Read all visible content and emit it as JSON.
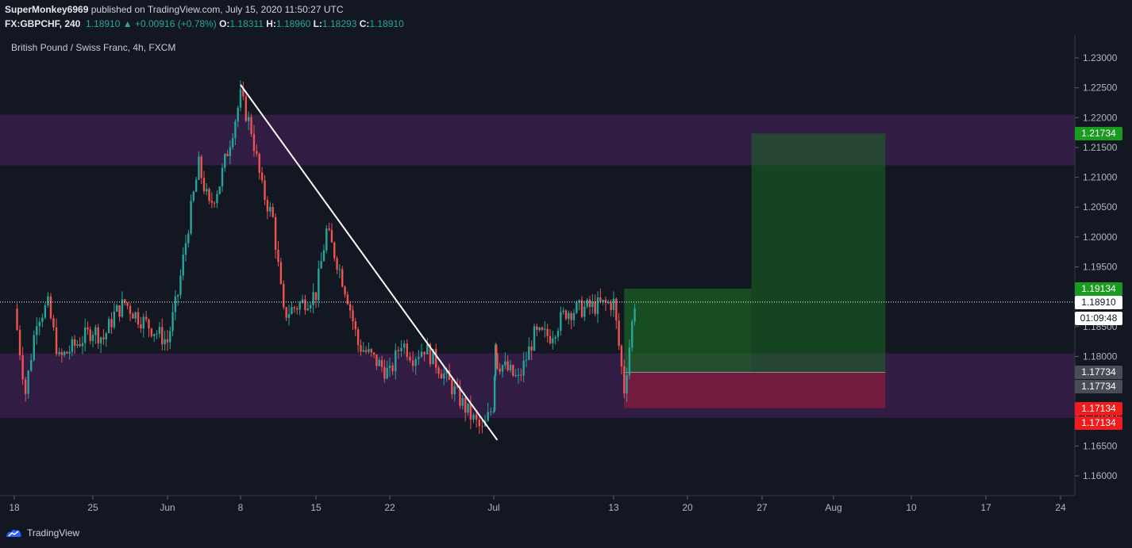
{
  "header": {
    "publisher": "SuperMonkey6969",
    "published_text": "published on TradingView.com, July 15, 2020 11:50:27 UTC",
    "symbol": "FX:GBPCHF, 240",
    "last": "1.18910",
    "change": "▲ +0.00916 (+0.78%)",
    "o_label": "O:",
    "o_value": "1.18311",
    "h_label": "H:",
    "h_value": "1.18960",
    "l_label": "L:",
    "l_value": "1.18293",
    "c_label": "C:",
    "c_value": "1.18910"
  },
  "footer": {
    "brand": "TradingView"
  },
  "colors": {
    "up": "#26a69a",
    "down": "#ef5350",
    "zone": "#4a2060",
    "background": "#131722"
  },
  "chart_data": {
    "type": "candlestick",
    "title": "British Pound / Swiss Franc, 4h, FXCM",
    "y_ticks": [
      "1.23000",
      "1.22500",
      "1.22000",
      "1.21500",
      "1.21000",
      "1.20500",
      "1.20000",
      "1.19500",
      "1.19000",
      "1.18500",
      "1.18000",
      "1.17500",
      "1.17000",
      "1.16500",
      "1.16000"
    ],
    "ylim": [
      1.1565,
      1.2345
    ],
    "x_ticks": [
      "18",
      "25",
      "Jun",
      "8",
      "15",
      "22",
      "Jul",
      "13",
      "20",
      "27",
      "Aug",
      "10",
      "17",
      "24"
    ],
    "last_price": 1.1891,
    "countdown": "01:09:48",
    "price_labels": [
      {
        "text": "1.21734",
        "value": 1.21734,
        "color": "#1b9a20"
      },
      {
        "text": "1.19134",
        "value": 1.19134,
        "color": "#1b9a20"
      },
      {
        "text": "1.18910",
        "value": 1.1891,
        "color": "#ffffff"
      },
      {
        "text": "1.17734",
        "value": 1.17734,
        "color": "#4a4d55"
      },
      {
        "text": "1.17734",
        "value": 1.17734,
        "color": "#4a4d55"
      },
      {
        "text": "1.17134",
        "value": 1.17134,
        "color": "#ee1c1c"
      },
      {
        "text": "1.17134",
        "value": 1.17134,
        "color": "#ee1c1c"
      }
    ],
    "zones": [
      {
        "from": 1.212,
        "to": 1.2205
      },
      {
        "from": 1.1697,
        "to": 1.1805
      }
    ],
    "trendline": {
      "from": {
        "date": "Jun 8",
        "price": 1.2255
      },
      "to": {
        "date": "Jul 3",
        "price": 1.166
      }
    },
    "long_position": {
      "start": "Jul 14",
      "entry": 1.17734,
      "stop": 1.17134,
      "target_1": 1.19134,
      "target_2": 1.21734
    },
    "path": [
      {
        "date": "May 18",
        "close": 1.188
      },
      {
        "date": "May 19",
        "close": 1.174
      },
      {
        "date": "May 20",
        "close": 1.1865
      },
      {
        "date": "May 21",
        "close": 1.1885
      },
      {
        "date": "May 22",
        "close": 1.1795
      },
      {
        "date": "May 25",
        "close": 1.1845
      },
      {
        "date": "May 26",
        "close": 1.183
      },
      {
        "date": "May 27",
        "close": 1.187
      },
      {
        "date": "May 28",
        "close": 1.189
      },
      {
        "date": "May 29",
        "close": 1.187
      },
      {
        "date": "Jun 1",
        "close": 1.1825
      },
      {
        "date": "Jun 2",
        "close": 1.1905
      },
      {
        "date": "Jun 3",
        "close": 1.202
      },
      {
        "date": "Jun 4",
        "close": 1.212
      },
      {
        "date": "Jun 5",
        "close": 1.205
      },
      {
        "date": "Jun 6",
        "close": 1.209
      },
      {
        "date": "Jun 8",
        "close": 1.2235
      },
      {
        "date": "Jun 9",
        "close": 1.218
      },
      {
        "date": "Jun 10",
        "close": 1.208
      },
      {
        "date": "Jun 11",
        "close": 1.203
      },
      {
        "date": "Jun 12",
        "close": 1.187
      },
      {
        "date": "Jun 15",
        "close": 1.1905
      },
      {
        "date": "Jun 16",
        "close": 1.201
      },
      {
        "date": "Jun 17",
        "close": 1.196
      },
      {
        "date": "Jun 18",
        "close": 1.19
      },
      {
        "date": "Jun 19",
        "close": 1.182
      },
      {
        "date": "Jun 22",
        "close": 1.177
      },
      {
        "date": "Jun 23",
        "close": 1.1825
      },
      {
        "date": "Jun 24",
        "close": 1.18
      },
      {
        "date": "Jun 25",
        "close": 1.1815
      },
      {
        "date": "Jun 26",
        "close": 1.179
      },
      {
        "date": "Jun 29",
        "close": 1.17
      },
      {
        "date": "Jun 30",
        "close": 1.1675
      },
      {
        "date": "Jul 1",
        "close": 1.172
      },
      {
        "date": "Jul 2",
        "close": 1.183
      },
      {
        "date": "Jul 3",
        "close": 1.179
      },
      {
        "date": "Jul 6",
        "close": 1.1785
      },
      {
        "date": "Jul 7",
        "close": 1.176
      },
      {
        "date": "Jul 8",
        "close": 1.1835
      },
      {
        "date": "Jul 9",
        "close": 1.1835
      },
      {
        "date": "Jul 10",
        "close": 1.1875
      },
      {
        "date": "Jul 13",
        "close": 1.189
      },
      {
        "date": "Jul 14",
        "close": 1.1745
      },
      {
        "date": "Jul 15",
        "close": 1.1891
      }
    ]
  }
}
